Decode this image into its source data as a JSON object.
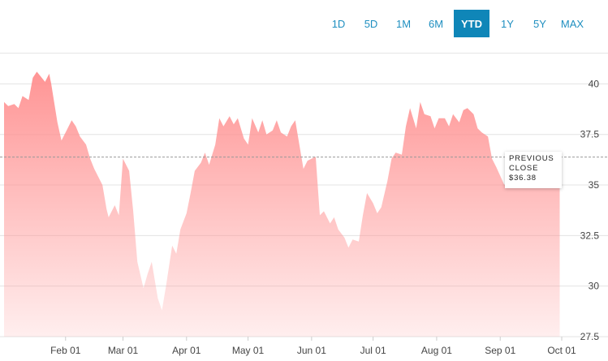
{
  "range_selector": {
    "options": [
      "1D",
      "5D",
      "1M",
      "6M",
      "YTD",
      "1Y",
      "5Y",
      "MAX"
    ],
    "selected": "YTD"
  },
  "previous_close": {
    "label_line1": "PREVIOUS",
    "label_line2": "CLOSE",
    "value_text": "$36.38"
  },
  "chart_data": {
    "type": "area",
    "title": "",
    "xlabel": "",
    "ylabel": "",
    "x_tick_labels": [
      "Feb 01",
      "Mar 01",
      "Apr 01",
      "May 01",
      "Jun 01",
      "Jul 01",
      "Aug 01",
      "Sep 01",
      "Oct 01"
    ],
    "y_tick_labels": [
      "27.5",
      "30",
      "32.5",
      "35",
      "37.5",
      "40"
    ],
    "y_ticks": [
      27.5,
      30,
      32.5,
      35,
      37.5,
      40
    ],
    "ylim": [
      27.5,
      41.5
    ],
    "xlim": [
      "2019-01-02",
      "2019-10-01"
    ],
    "grid": "horizontal",
    "fill_color": "#ff8f8f",
    "reference_line": {
      "label": "PREVIOUS CLOSE",
      "value": 36.38
    },
    "series": [
      {
        "name": "",
        "x": [
          "2019-01-02",
          "2019-01-04",
          "2019-01-07",
          "2019-01-09",
          "2019-01-11",
          "2019-01-14",
          "2019-01-16",
          "2019-01-18",
          "2019-01-22",
          "2019-01-24",
          "2019-01-25",
          "2019-01-28",
          "2019-01-30",
          "2019-02-01",
          "2019-02-04",
          "2019-02-06",
          "2019-02-08",
          "2019-02-11",
          "2019-02-13",
          "2019-02-15",
          "2019-02-19",
          "2019-02-21",
          "2019-02-22",
          "2019-02-25",
          "2019-02-27",
          "2019-03-01",
          "2019-03-04",
          "2019-03-06",
          "2019-03-08",
          "2019-03-11",
          "2019-03-13",
          "2019-03-15",
          "2019-03-18",
          "2019-03-20",
          "2019-03-22",
          "2019-03-25",
          "2019-03-27",
          "2019-03-29",
          "2019-04-01",
          "2019-04-03",
          "2019-04-05",
          "2019-04-08",
          "2019-04-10",
          "2019-04-12",
          "2019-04-15",
          "2019-04-17",
          "2019-04-19",
          "2019-04-22",
          "2019-04-24",
          "2019-04-26",
          "2019-04-29",
          "2019-05-01",
          "2019-05-03",
          "2019-05-06",
          "2019-05-08",
          "2019-05-10",
          "2019-05-13",
          "2019-05-15",
          "2019-05-17",
          "2019-05-20",
          "2019-05-22",
          "2019-05-24",
          "2019-05-28",
          "2019-05-30",
          "2019-06-03",
          "2019-06-05",
          "2019-06-07",
          "2019-06-10",
          "2019-06-12",
          "2019-06-14",
          "2019-06-17",
          "2019-06-19",
          "2019-06-21",
          "2019-06-24",
          "2019-06-26",
          "2019-06-28",
          "2019-07-01",
          "2019-07-03",
          "2019-07-05",
          "2019-07-08",
          "2019-07-10",
          "2019-07-12",
          "2019-07-15",
          "2019-07-17",
          "2019-07-19",
          "2019-07-22",
          "2019-07-24",
          "2019-07-26",
          "2019-07-29",
          "2019-07-31",
          "2019-08-02",
          "2019-08-05",
          "2019-08-07",
          "2019-08-09",
          "2019-08-12",
          "2019-08-14",
          "2019-08-16",
          "2019-08-19",
          "2019-08-21",
          "2019-08-23",
          "2019-08-26",
          "2019-08-28",
          "2019-08-30",
          "2019-09-03",
          "2019-09-05",
          "2019-09-09",
          "2019-09-11",
          "2019-09-13",
          "2019-09-16",
          "2019-09-18",
          "2019-09-20",
          "2019-09-23",
          "2019-09-25",
          "2019-09-27",
          "2019-09-30"
        ],
        "y": [
          39.1,
          38.9,
          39.0,
          38.8,
          39.4,
          39.2,
          40.3,
          40.6,
          40.1,
          40.5,
          40.0,
          38.1,
          37.2,
          37.6,
          38.2,
          37.9,
          37.4,
          37.0,
          36.3,
          35.8,
          35.0,
          33.8,
          33.4,
          34.0,
          33.5,
          36.3,
          35.7,
          33.7,
          31.2,
          29.9,
          30.6,
          31.2,
          29.4,
          28.8,
          30.0,
          32.0,
          31.6,
          32.8,
          33.6,
          34.6,
          35.7,
          36.1,
          36.6,
          36.0,
          37.0,
          38.3,
          37.9,
          38.4,
          38.0,
          38.3,
          37.3,
          37.0,
          38.3,
          37.6,
          38.2,
          37.5,
          37.7,
          38.2,
          37.6,
          37.4,
          37.9,
          38.2,
          35.8,
          36.2,
          36.4,
          33.5,
          33.7,
          33.1,
          33.4,
          32.8,
          32.4,
          31.9,
          32.3,
          32.2,
          33.5,
          34.6,
          34.1,
          33.6,
          33.9,
          35.2,
          36.3,
          36.6,
          36.5,
          37.9,
          38.8,
          37.8,
          39.1,
          38.5,
          38.4,
          37.8,
          38.3,
          38.3,
          37.9,
          38.5,
          38.1,
          38.7,
          38.8,
          38.5,
          37.8,
          37.6,
          37.4,
          36.3,
          35.9,
          35.0,
          35.3,
          35.7,
          35.4,
          35.8,
          35.5,
          35.2,
          35.0,
          35.3,
          35.6,
          36.0,
          35.9
        ]
      }
    ]
  }
}
